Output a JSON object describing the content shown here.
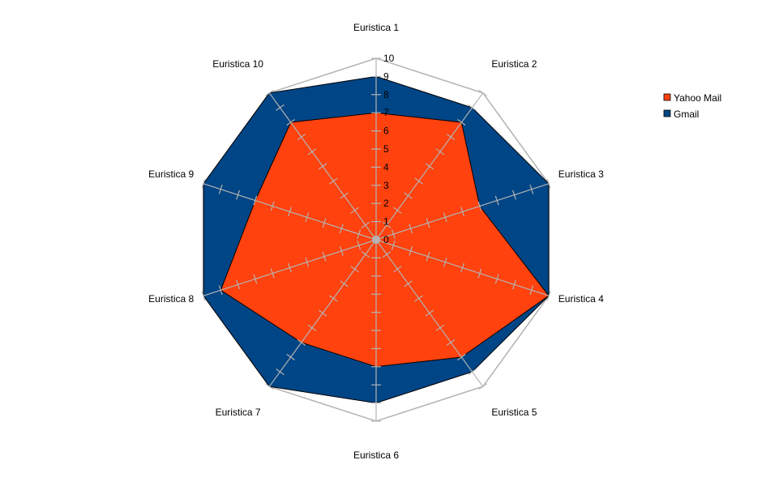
{
  "chart_data": {
    "type": "radar",
    "categories": [
      "Euristica 1",
      "Euristica 2",
      "Euristica 3",
      "Euristica 4",
      "Euristica 5",
      "Euristica 6",
      "Euristica 7",
      "Euristica 8",
      "Euristica 9",
      "Euristica 10"
    ],
    "series": [
      {
        "name": "Gmail",
        "color": "#004586",
        "values": [
          9,
          9,
          10,
          10,
          9,
          9,
          10,
          10,
          10,
          10
        ]
      },
      {
        "name": "Yahoo Mail",
        "color": "#ff420e",
        "values": [
          7,
          8,
          6,
          10,
          8,
          7,
          7,
          9,
          7,
          8
        ]
      }
    ],
    "axis": {
      "min": 0,
      "max": 10,
      "step": 1,
      "tick_labels": [
        "0",
        "1",
        "2",
        "3",
        "4",
        "5",
        "6",
        "7",
        "8",
        "9",
        "10"
      ]
    },
    "legend": {
      "position": "right",
      "entries": [
        "Yahoo Mail",
        "Gmail"
      ]
    },
    "grid_color": "#b3b3b3"
  }
}
